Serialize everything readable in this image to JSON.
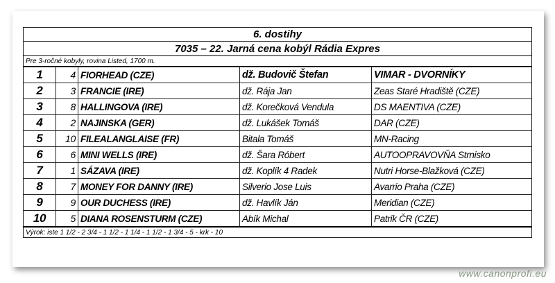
{
  "race_number": "6. dostihy",
  "race_title": "7035 – 22. Jarná cena kobýl Rádia Expres",
  "conditions": "Pre 3-ročné kobyly, rovina Listed, 1700 m.",
  "results": [
    {
      "place": "1",
      "number": "4",
      "horse": "FIORHEAD (CZE)",
      "jockey": "dž. Budovič Štefan",
      "owner": "VIMAR - DVORNÍKY"
    },
    {
      "place": "2",
      "number": "3",
      "horse": "FRANCIE (IRE)",
      "jockey": "dž. Rája Jan",
      "owner": "Zeas Staré Hradiště (CZE)"
    },
    {
      "place": "3",
      "number": "8",
      "horse": "HALLINGOVA (IRE)",
      "jockey": "dž. Korečková Vendula",
      "owner": "DS MAENTIVA (CZE)"
    },
    {
      "place": "4",
      "number": "2",
      "horse": "NAJINSKA (GER)",
      "jockey": "dž. Lukášek Tomáš",
      "owner": "DAR (CZE)"
    },
    {
      "place": "5",
      "number": "10",
      "horse": "FILEALANGLAISE (FR)",
      "jockey": "Bitala Tomáš",
      "owner": "MN-Racing"
    },
    {
      "place": "6",
      "number": "6",
      "horse": "MINI WELLS (IRE)",
      "jockey": "dž. Šara Róbert",
      "owner": "AUTOOPRAVOVŇA Strnisko"
    },
    {
      "place": "7",
      "number": "1",
      "horse": "SÁZAVA (IRE)",
      "jockey": "dž. Koplík 4 Radek",
      "owner": "Nutri Horse-Blažková (CZE)"
    },
    {
      "place": "8",
      "number": "7",
      "horse": "MONEY FOR DANNY (IRE)",
      "jockey": "Silverio Jose Luis",
      "owner": "Avarrio Praha (CZE)"
    },
    {
      "place": "9",
      "number": "9",
      "horse": "OUR DUCHESS (IRE)",
      "jockey": "dž. Havlík Ján",
      "owner": "Meridian (CZE)"
    },
    {
      "place": "10",
      "number": "5",
      "horse": "DIANA ROSENSTURM (CZE)",
      "jockey": "Abík Michal",
      "owner": "Patrik ČR (CZE)"
    }
  ],
  "margins": "Výrok: iste 1 1/2 - 2 3/4 - 1 1/2 - 1 1/4 - 1 1/2 - 1 3/4 - 5 - krk - 10",
  "watermark": "www.canonprofi.eu"
}
